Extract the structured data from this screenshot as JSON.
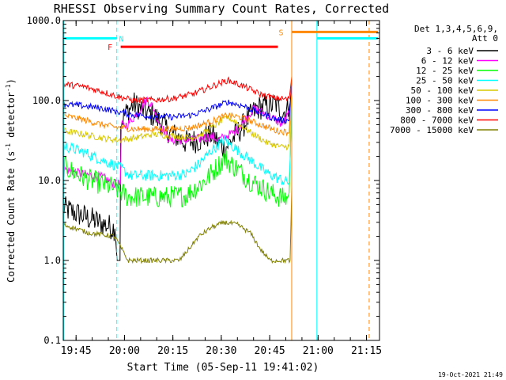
{
  "chart_data": {
    "type": "line",
    "title": "RHESSI Observing Summary Count Rates, Corrected",
    "xlabel": "Start Time (05-Sep-11 19:41:02)",
    "ylabel_parts": {
      "main": "Corrected Count Rate (s",
      "sup1": "-1",
      "mid": " detector",
      "sup2": "-1",
      "end": ")"
    },
    "footer": "19-Oct-2021 21:49",
    "legend_header": [
      "Det 1,3,4,5,6,9,",
      "Att 0"
    ],
    "x_unit": "minutes after 19:41:02",
    "xlim": [
      0,
      98
    ],
    "ylim": [
      0.1,
      1000
    ],
    "y_scale": "log",
    "y_ticks": [
      {
        "value": 0.1,
        "label": "0.1"
      },
      {
        "value": 1,
        "label": "1.0"
      },
      {
        "value": 10,
        "label": "10.0"
      },
      {
        "value": 100,
        "label": "100.0"
      },
      {
        "value": 1000,
        "label": "1000.0"
      }
    ],
    "x_ticks": [
      {
        "t": 3.97,
        "label": "19:45"
      },
      {
        "t": 18.97,
        "label": "20:00"
      },
      {
        "t": 33.97,
        "label": "20:15"
      },
      {
        "t": 48.97,
        "label": "20:30"
      },
      {
        "t": 63.97,
        "label": "20:45"
      },
      {
        "t": 78.97,
        "label": "21:00"
      },
      {
        "t": 93.97,
        "label": "21:15"
      }
    ],
    "series": [
      {
        "name": "3 - 6 keV",
        "color": "#000000",
        "noise": 0.16,
        "points": [
          [
            0,
            4.5
          ],
          [
            16,
            2.5
          ],
          [
            16.7,
            1.0
          ],
          [
            17.6,
            1.0
          ],
          [
            17.8,
            55
          ],
          [
            20,
            75
          ],
          [
            22,
            90
          ],
          [
            26,
            70
          ],
          [
            28,
            65
          ],
          [
            30,
            55
          ],
          [
            33,
            40
          ],
          [
            38,
            30
          ],
          [
            42,
            32
          ],
          [
            46,
            38
          ],
          [
            48,
            30
          ],
          [
            50,
            25
          ],
          [
            53,
            35
          ],
          [
            56,
            50
          ],
          [
            60,
            80
          ],
          [
            63,
            85
          ],
          [
            66,
            90
          ],
          [
            68,
            70
          ],
          [
            70,
            80
          ],
          [
            70.8,
            120
          ]
        ]
      },
      {
        "name": "6 - 12 keV",
        "color": "#ff00ff",
        "noise": 0.06,
        "points": [
          [
            0,
            14
          ],
          [
            6,
            12
          ],
          [
            12,
            11
          ],
          [
            16,
            9
          ],
          [
            17.7,
            9
          ],
          [
            18,
            48
          ],
          [
            20,
            50
          ],
          [
            24,
            80
          ],
          [
            26,
            105
          ],
          [
            28,
            80
          ],
          [
            30,
            50
          ],
          [
            33,
            32
          ],
          [
            40,
            32
          ],
          [
            46,
            36
          ],
          [
            48,
            32
          ],
          [
            50,
            35
          ],
          [
            53,
            40
          ],
          [
            56,
            55
          ],
          [
            59,
            80
          ],
          [
            62,
            70
          ],
          [
            65,
            60
          ],
          [
            68,
            50
          ],
          [
            70,
            70
          ],
          [
            70.8,
            110
          ]
        ]
      },
      {
        "name": "12 - 25 keV",
        "color": "#00ff00",
        "noise": 0.14,
        "points": [
          [
            0,
            15
          ],
          [
            6,
            11
          ],
          [
            12,
            9
          ],
          [
            16,
            8
          ],
          [
            20,
            6.3
          ],
          [
            26,
            6.2
          ],
          [
            32,
            6.2
          ],
          [
            38,
            6.5
          ],
          [
            44,
            10
          ],
          [
            50,
            19
          ],
          [
            53,
            15
          ],
          [
            58,
            10
          ],
          [
            64,
            7
          ],
          [
            68,
            6
          ],
          [
            69.5,
            6
          ],
          [
            70,
            7
          ],
          [
            70.3,
            16
          ],
          [
            70.8,
            150
          ]
        ]
      },
      {
        "name": "25 - 50 keV",
        "color": "#00ffff",
        "noise": 0.07,
        "points": [
          [
            0,
            27
          ],
          [
            6,
            23
          ],
          [
            12,
            18
          ],
          [
            17,
            15
          ],
          [
            21,
            11.5
          ],
          [
            26,
            11.5
          ],
          [
            32,
            11.5
          ],
          [
            38,
            12
          ],
          [
            42,
            16
          ],
          [
            46,
            24
          ],
          [
            50,
            32
          ],
          [
            53,
            26
          ],
          [
            58,
            18
          ],
          [
            63,
            12.5
          ],
          [
            68,
            10
          ],
          [
            70,
            9.5
          ],
          [
            70.4,
            22
          ],
          [
            70.8,
            160
          ]
        ]
      },
      {
        "name": "50 - 100 keV",
        "color": "#d8c800",
        "noise": 0.04,
        "points": [
          [
            0,
            42
          ],
          [
            6,
            38
          ],
          [
            12,
            34
          ],
          [
            17,
            32
          ],
          [
            22,
            34
          ],
          [
            28,
            38
          ],
          [
            34,
            36
          ],
          [
            40,
            34
          ],
          [
            44,
            40
          ],
          [
            48,
            52
          ],
          [
            51,
            62
          ],
          [
            54,
            52
          ],
          [
            58,
            40
          ],
          [
            63,
            30
          ],
          [
            68,
            26
          ],
          [
            70,
            27
          ],
          [
            70.4,
            60
          ],
          [
            70.8,
            160
          ]
        ]
      },
      {
        "name": "100 - 300 keV",
        "color": "#ff8800",
        "noise": 0.04,
        "points": [
          [
            0,
            65
          ],
          [
            6,
            58
          ],
          [
            12,
            50
          ],
          [
            17,
            46
          ],
          [
            22,
            44
          ],
          [
            28,
            44
          ],
          [
            34,
            44
          ],
          [
            40,
            46
          ],
          [
            46,
            55
          ],
          [
            51,
            66
          ],
          [
            56,
            60
          ],
          [
            61,
            50
          ],
          [
            66,
            42
          ],
          [
            70,
            40
          ],
          [
            70.4,
            80
          ],
          [
            70.8,
            170
          ]
        ]
      },
      {
        "name": "300 - 800 keV",
        "color": "#0000ff",
        "noise": 0.04,
        "points": [
          [
            0,
            90
          ],
          [
            6,
            86
          ],
          [
            12,
            80
          ],
          [
            17,
            72
          ],
          [
            22,
            66
          ],
          [
            28,
            64
          ],
          [
            34,
            62
          ],
          [
            40,
            66
          ],
          [
            46,
            80
          ],
          [
            51,
            96
          ],
          [
            56,
            85
          ],
          [
            61,
            70
          ],
          [
            66,
            58
          ],
          [
            70,
            56
          ],
          [
            70.4,
            100
          ],
          [
            70.8,
            180
          ]
        ]
      },
      {
        "name": "800 - 7000 keV",
        "color": "#ff0000",
        "noise": 0.04,
        "points": [
          [
            0,
            160
          ],
          [
            6,
            150
          ],
          [
            12,
            130
          ],
          [
            17,
            112
          ],
          [
            22,
            100
          ],
          [
            28,
            102
          ],
          [
            34,
            106
          ],
          [
            40,
            120
          ],
          [
            46,
            150
          ],
          [
            51,
            180
          ],
          [
            56,
            150
          ],
          [
            61,
            120
          ],
          [
            66,
            106
          ],
          [
            70,
            104
          ],
          [
            70.4,
            140
          ],
          [
            70.8,
            200
          ]
        ]
      },
      {
        "name": "7000 - 15000 keV",
        "color": "#808000",
        "noise": 0.03,
        "points": [
          [
            0,
            2.8
          ],
          [
            4,
            2.5
          ],
          [
            8,
            2.2
          ],
          [
            12,
            2.1
          ],
          [
            16,
            2.0
          ],
          [
            20,
            1.0
          ],
          [
            30,
            1.0
          ],
          [
            33,
            1.0
          ],
          [
            36,
            1.0
          ],
          [
            39,
            1.4
          ],
          [
            42,
            2.0
          ],
          [
            46,
            2.6
          ],
          [
            50,
            3.0
          ],
          [
            54,
            2.8
          ],
          [
            58,
            2.2
          ],
          [
            61,
            1.4
          ],
          [
            64,
            1.0
          ],
          [
            68,
            1.0
          ],
          [
            70.3,
            1.0
          ],
          [
            70.8,
            8
          ]
        ]
      }
    ],
    "bars": [
      {
        "label": "N",
        "color": "#00ffff",
        "y": 600,
        "segments": [
          [
            0,
            16.6
          ],
          [
            78.6,
            97.5
          ]
        ],
        "label_t": 18.0
      },
      {
        "label": "F",
        "color": "#ff0000",
        "y": 470,
        "segments": [
          [
            17.8,
            66.5
          ]
        ],
        "label_t": 14.5
      },
      {
        "label": "S",
        "color": "#ff8800",
        "y": 720,
        "segments": [
          [
            70.8,
            97.5
          ]
        ],
        "label_t": 67.5
      }
    ],
    "vlines": [
      {
        "t": 0.2,
        "color": "#00ffff",
        "style": "solid"
      },
      {
        "t": 16.6,
        "color": "#00ffff",
        "style": "dashed"
      },
      {
        "t": 70.8,
        "color": "#ff8800",
        "style": "solid"
      },
      {
        "t": 78.6,
        "color": "#00ffff",
        "style": "solid"
      },
      {
        "t": 94.8,
        "color": "#ff8800",
        "style": "dashed"
      }
    ]
  }
}
